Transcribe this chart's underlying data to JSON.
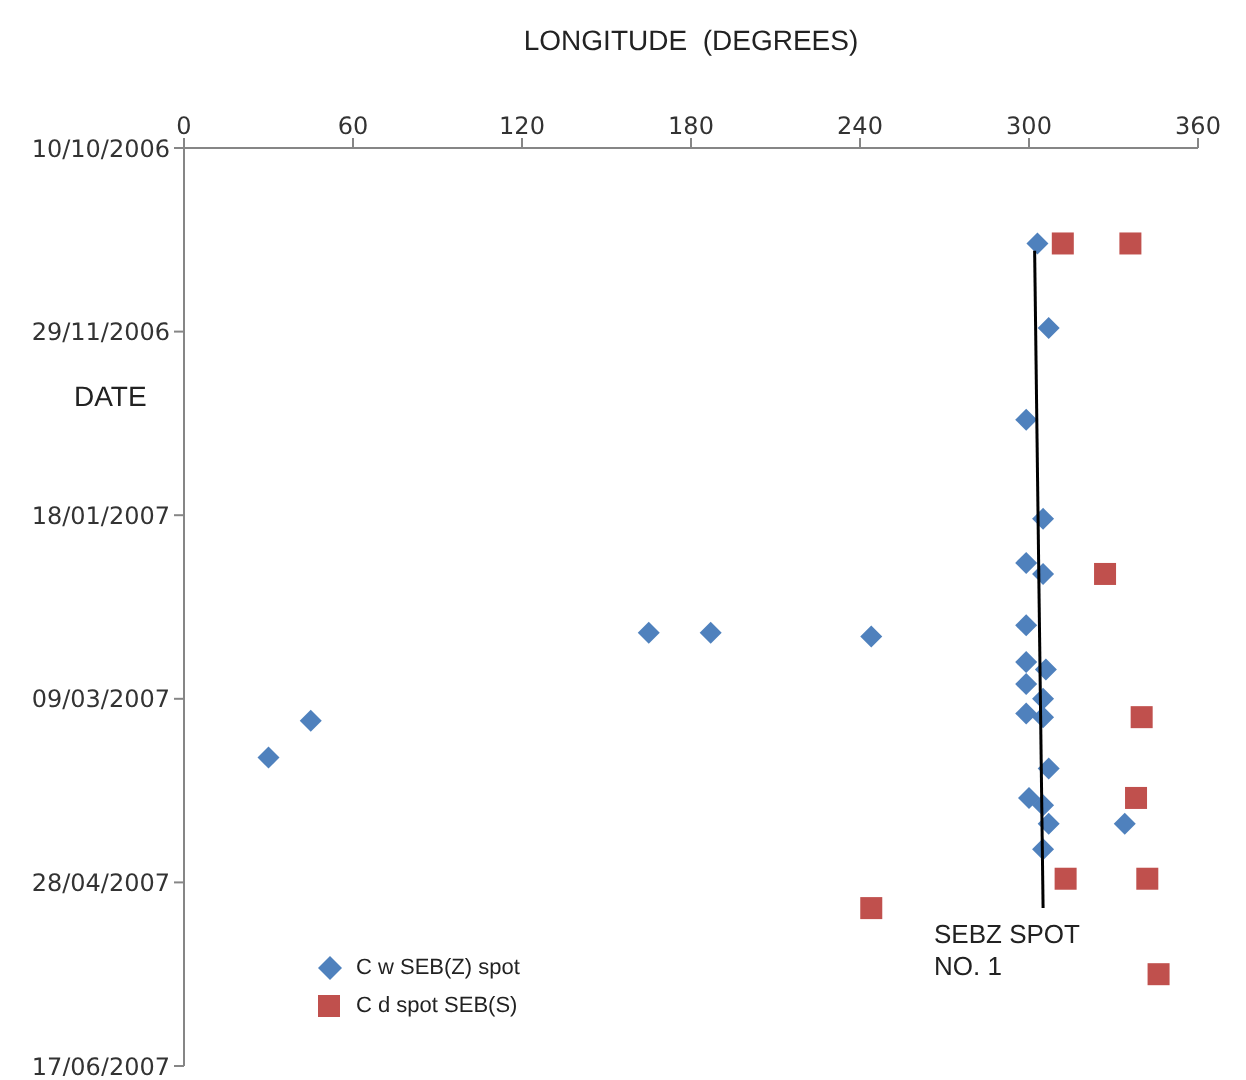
{
  "chart_data": {
    "type": "scatter",
    "orientation": "horizontal",
    "xlabel": "LONGITUDE  (DEGREES)",
    "ylabel": "DATE",
    "xlim": [
      0,
      360
    ],
    "xticks": [
      0,
      60,
      120,
      180,
      240,
      300,
      360
    ],
    "ylim": [
      "2007-06-17",
      "2006-10-10"
    ],
    "yticks": [
      {
        "value": "2006-10-10",
        "label": "10/10/2006"
      },
      {
        "value": "2006-11-29",
        "label": "29/11/2006"
      },
      {
        "value": "2007-01-18",
        "label": "18/01/2007"
      },
      {
        "value": "2007-03-09",
        "label": "09/03/2007"
      },
      {
        "value": "2007-04-28",
        "label": "28/04/2007"
      },
      {
        "value": "2007-06-17",
        "label": "17/06/2007"
      }
    ],
    "grid": false,
    "legend": "bottom left",
    "series": [
      {
        "name": "C w SEB(Z) spot",
        "color": "#4f81bd",
        "marker": "diamond",
        "values": [
          303,
          307,
          299,
          305,
          299,
          305,
          299,
          165,
          187,
          244,
          299,
          306,
          299,
          305,
          299,
          305,
          45,
          30,
          307,
          300,
          305,
          307,
          334,
          305
        ],
        "x": [
          "2006-11-05",
          "2006-11-28",
          "2006-12-23",
          "2007-01-19",
          "2007-01-31",
          "2007-02-03",
          "2007-02-17",
          "2007-02-19",
          "2007-02-19",
          "2007-02-20",
          "2007-02-27",
          "2007-03-01",
          "2007-03-05",
          "2007-03-09",
          "2007-03-13",
          "2007-03-14",
          "2007-03-15",
          "2007-03-25",
          "2007-03-28",
          "2007-04-05",
          "2007-04-07",
          "2007-04-12",
          "2007-04-12",
          "2007-04-19"
        ]
      },
      {
        "name": "C d spot SEB(S)",
        "color": "#c0504d",
        "marker": "square",
        "values": [
          312,
          336,
          327,
          340,
          338,
          313,
          342,
          244,
          346
        ],
        "x": [
          "2006-11-05",
          "2006-11-05",
          "2007-02-03",
          "2007-03-14",
          "2007-04-05",
          "2007-04-27",
          "2007-04-27",
          "2007-05-05",
          "2007-05-23"
        ]
      },
      {
        "name": "SEBZ SPOT NO. 1",
        "type": "line",
        "color": "#000000",
        "marker": "none",
        "values": [
          302,
          305
        ],
        "x": [
          "2006-11-07",
          "2007-05-05"
        ]
      }
    ]
  }
}
